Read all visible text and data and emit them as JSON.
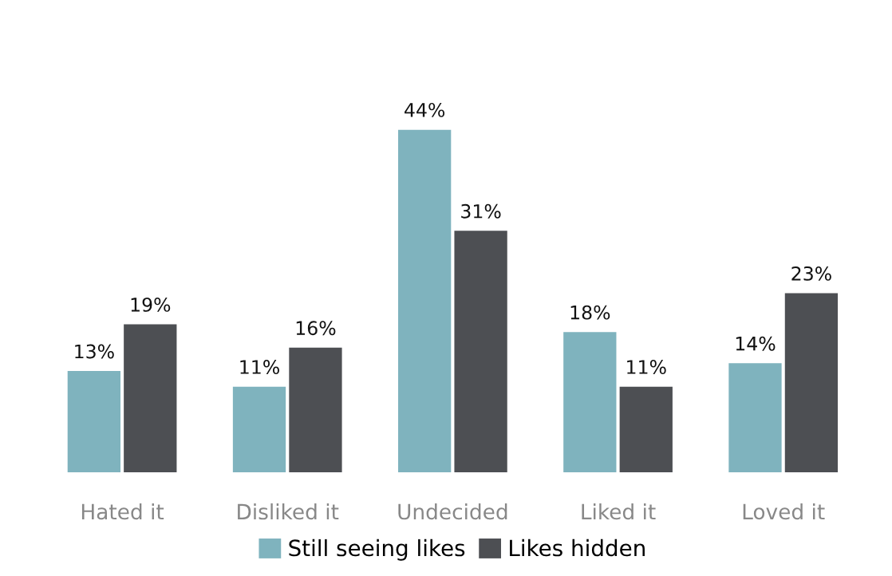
{
  "chart_data": {
    "type": "bar",
    "categories": [
      "Hated it",
      "Disliked it",
      "Undecided",
      "Liked it",
      "Loved it"
    ],
    "series": [
      {
        "name": "Still seeing likes",
        "color": "#7fb3be",
        "values": [
          13,
          11,
          44,
          18,
          14
        ],
        "value_labels": [
          "13%",
          "11%",
          "44%",
          "18%",
          "14%"
        ]
      },
      {
        "name": "Likes hidden",
        "color": "#4d4f53",
        "values": [
          19,
          16,
          31,
          11,
          23
        ],
        "value_labels": [
          "19%",
          "16%",
          "31%",
          "11%",
          "23%"
        ]
      }
    ],
    "legend": "bottom",
    "grid": false
  }
}
